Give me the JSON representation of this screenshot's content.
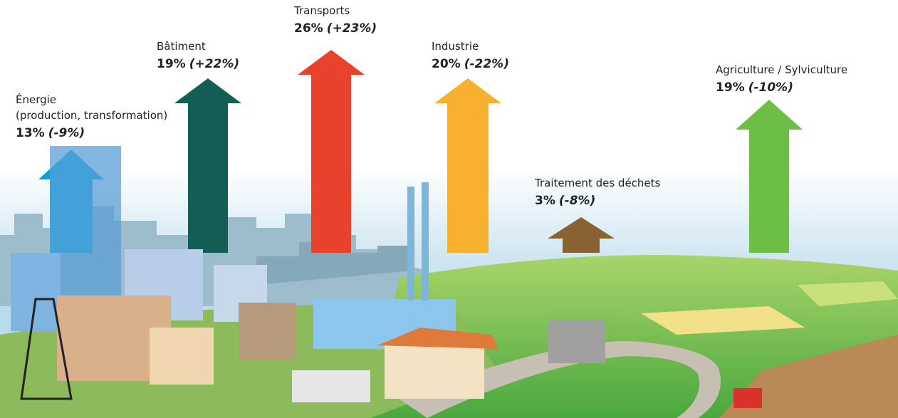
{
  "sectors": [
    {
      "name": "Énergie",
      "detail": "(production, transformation)",
      "share": "13%",
      "change": "(-9%)"
    },
    {
      "name": "Bâtiment",
      "share": "19%",
      "change": "(+22%)"
    },
    {
      "name": "Transports",
      "share": "26%",
      "change": "(+23%)"
    },
    {
      "name": "Industrie",
      "share": "20%",
      "change": "(-22%)"
    },
    {
      "name": "Traitement des déchets",
      "share": "3%",
      "change": "(-8%)"
    },
    {
      "name": "Agriculture / Sylviculture",
      "share": "19%",
      "change": "(-10%)"
    }
  ]
}
